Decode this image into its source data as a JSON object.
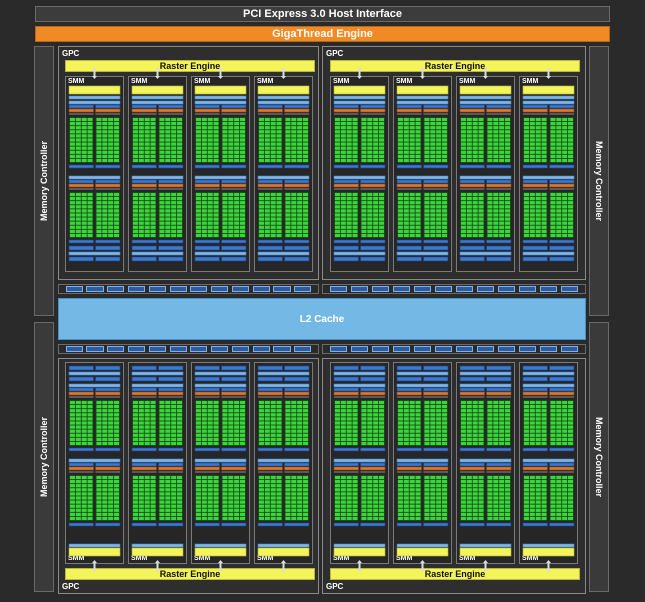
{
  "host_interface": {
    "label": "PCI Express 3.0 Host Interface"
  },
  "gigathread": {
    "label": "GigaThread Engine"
  },
  "memory_controller": {
    "label": "Memory Controller"
  },
  "l2_cache": {
    "label": "L2 Cache"
  },
  "gpc": {
    "label": "GPC"
  },
  "raster_engine": {
    "label": "Raster Engine"
  },
  "smm": {
    "label": "SMM"
  },
  "colors": {
    "gigathread": "#f08a24",
    "raster_engine": "#f3f35a",
    "l2_cache": "#74b8e6",
    "core": "#38d838",
    "register": "#3a7ad0",
    "cache_band": "#e07830",
    "background": "#2a2a2a"
  }
}
